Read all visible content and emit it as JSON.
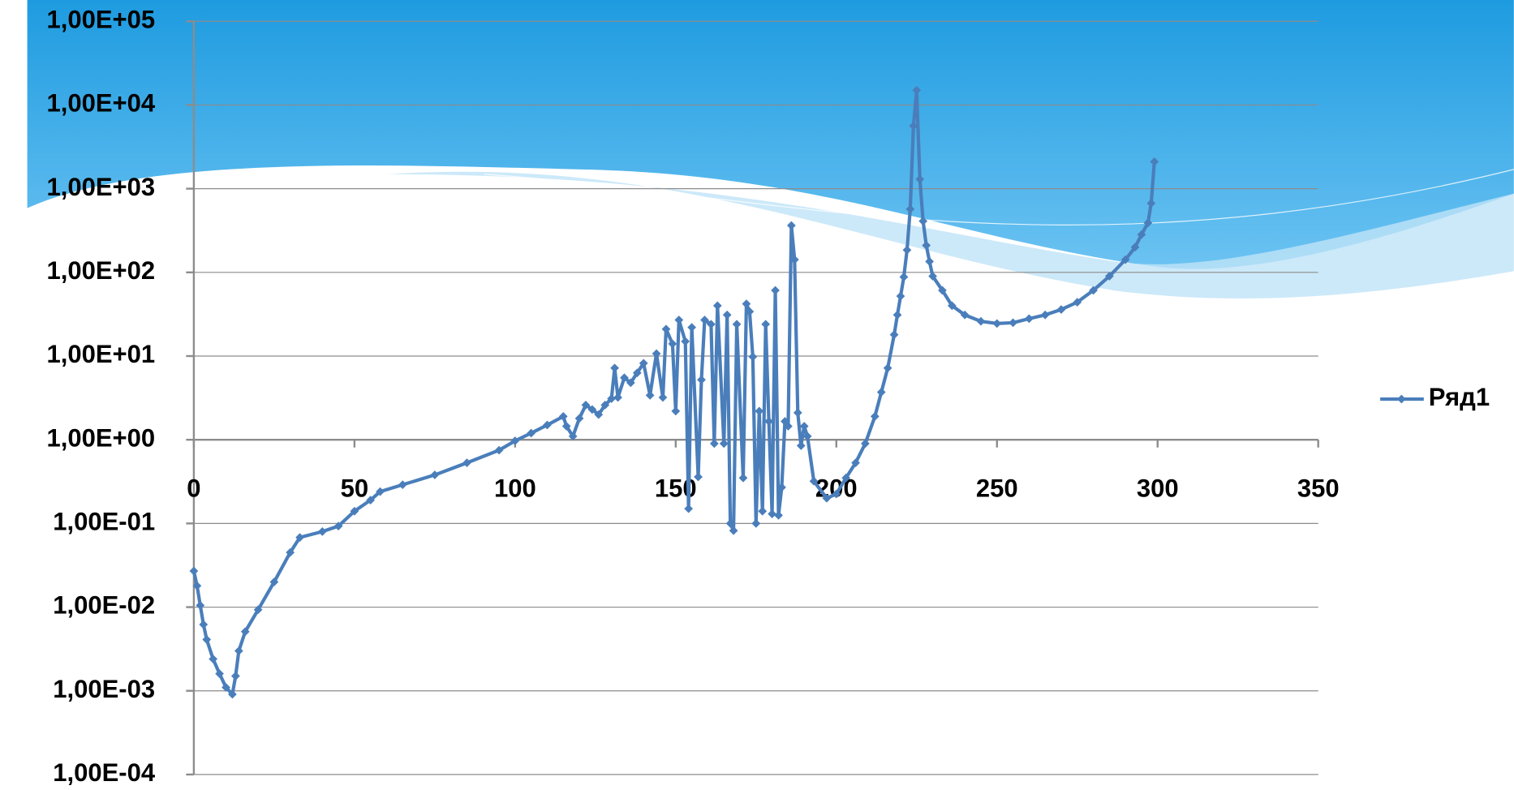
{
  "chart_data": {
    "type": "line",
    "log_y": true,
    "grid": true,
    "legend": "right",
    "series": [
      {
        "name": "Ряд1",
        "color": "#4a7ebb",
        "x": [
          0,
          1,
          2,
          3,
          4,
          6,
          8,
          10,
          12,
          13,
          14,
          16,
          20,
          25,
          30,
          33,
          40,
          45,
          50,
          55,
          58,
          65,
          75,
          85,
          95,
          100,
          105,
          110,
          115,
          116,
          118,
          120,
          122,
          124,
          126,
          128,
          130,
          131,
          132,
          134,
          136,
          138,
          140,
          142,
          144,
          146,
          147,
          149,
          150,
          151,
          153,
          154,
          155,
          157,
          158,
          159,
          161,
          162,
          163,
          165,
          166,
          167,
          168,
          169,
          171,
          172,
          173,
          174,
          175,
          176,
          177,
          178,
          179,
          180,
          181,
          182,
          183,
          184,
          185,
          186,
          187,
          188,
          189,
          190,
          191,
          193,
          197,
          200,
          203,
          206,
          209,
          212,
          214,
          216,
          218,
          219,
          220,
          221,
          222,
          223,
          224,
          225,
          226,
          227,
          228,
          229,
          230,
          233,
          236,
          240,
          245,
          250,
          255,
          260,
          265,
          270,
          275,
          280,
          285,
          290,
          293,
          295,
          297,
          298,
          299
        ],
        "values": [
          0.027,
          0.018,
          0.0105,
          0.0062,
          0.0041,
          0.0024,
          0.0016,
          0.0011,
          0.00091,
          0.0015,
          0.003,
          0.0051,
          0.0093,
          0.02,
          0.045,
          0.068,
          0.08,
          0.093,
          0.14,
          0.19,
          0.24,
          0.29,
          0.38,
          0.53,
          0.75,
          0.97,
          1.2,
          1.5,
          1.9,
          1.45,
          1.1,
          1.8,
          2.6,
          2.3,
          2.0,
          2.6,
          3.1,
          7.2,
          3.2,
          5.5,
          4.8,
          6.3,
          8.2,
          3.4,
          10.7,
          3.2,
          21,
          14,
          2.2,
          27,
          15,
          0.15,
          22,
          0.36,
          5.2,
          27,
          24,
          0.9,
          40,
          0.9,
          31,
          0.1,
          0.082,
          24,
          0.35,
          42,
          34,
          9.8,
          0.1,
          2.2,
          0.14,
          24,
          1.66,
          0.13,
          61,
          0.125,
          0.27,
          1.66,
          1.45,
          363,
          142,
          2.1,
          0.85,
          1.45,
          1.1,
          0.32,
          0.2,
          0.225,
          0.35,
          0.53,
          0.9,
          1.9,
          3.7,
          7.2,
          18,
          31,
          52,
          88,
          185,
          570,
          5620,
          15000,
          1300,
          410,
          210,
          135,
          90,
          61,
          40,
          31,
          26,
          24.5,
          25,
          28,
          31,
          36,
          44,
          61,
          90,
          142,
          200,
          283,
          390,
          670,
          2100
        ]
      }
    ],
    "xlim": [
      0,
      350
    ],
    "xticks": [
      0,
      50,
      100,
      150,
      200,
      250,
      300,
      350
    ],
    "ylim": [
      0.0001,
      100000
    ],
    "yticks": [
      {
        "value": 0.0001,
        "label": "1,00E-04"
      },
      {
        "value": 0.001,
        "label": "1,00E-03"
      },
      {
        "value": 0.01,
        "label": "1,00E-02"
      },
      {
        "value": 0.1,
        "label": "1,00E-01"
      },
      {
        "value": 1,
        "label": "1,00E+00"
      },
      {
        "value": 10,
        "label": "1,00E+01"
      },
      {
        "value": 100,
        "label": "1,00E+02"
      },
      {
        "value": 1000,
        "label": "1,00E+03"
      },
      {
        "value": 10000,
        "label": "1,00E+04"
      },
      {
        "value": 100000,
        "label": "1,00E+05"
      }
    ]
  }
}
